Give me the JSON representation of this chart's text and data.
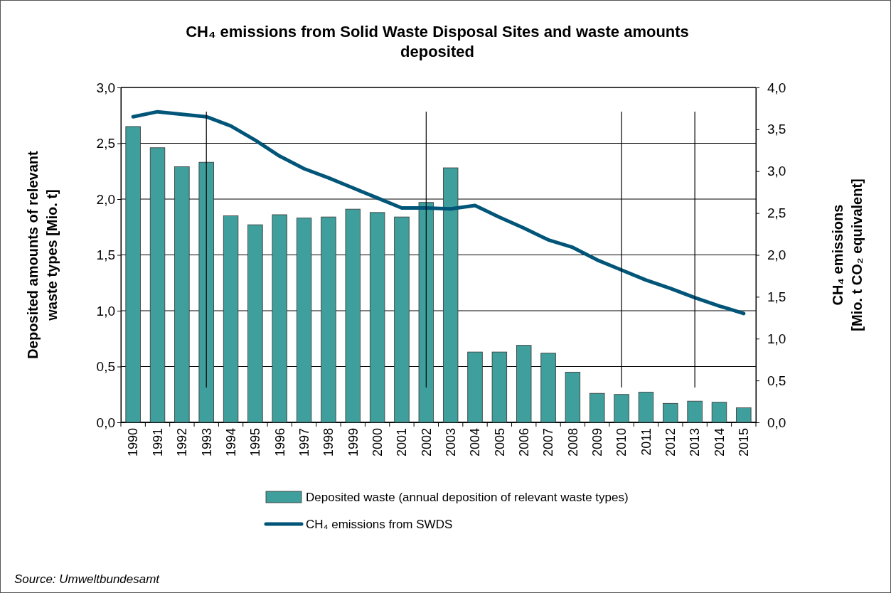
{
  "chart_data": {
    "type": "bar",
    "title": "CH₄ emissions from Solid Waste Disposal Sites and waste amounts deposited",
    "ylabel": "Deposited amounts of relevant waste types [Mio. t]",
    "y2label": "CH₄ emissions [Mio. t CO₂ equivalent]",
    "annotations": [
      "Source: Umweltbundesamt"
    ],
    "categories": [
      "1990",
      "1991",
      "1992",
      "1993",
      "1994",
      "1995",
      "1996",
      "1997",
      "1998",
      "1999",
      "2000",
      "2001",
      "2002",
      "2003",
      "2004",
      "2005",
      "2006",
      "2007",
      "2008",
      "2009",
      "2010",
      "2011",
      "2012",
      "2013",
      "2014",
      "2015"
    ],
    "series": [
      {
        "name": "Deposited waste (annual deposition of relevant waste types)",
        "color": "#3f9f9c",
        "values": [
          2.65,
          2.46,
          2.29,
          2.33,
          1.85,
          1.77,
          1.86,
          1.83,
          1.84,
          1.91,
          1.88,
          1.84,
          1.97,
          2.28,
          0.63,
          0.63,
          0.69,
          0.62,
          0.45,
          0.26,
          0.25,
          0.27,
          0.17,
          0.19,
          0.18,
          0.13
        ]
      },
      {
        "name": "CH₄ emissions from SWDS",
        "type": "line",
        "axis": "y2",
        "color": "#005578",
        "values": [
          3.65,
          3.71,
          3.68,
          3.65,
          3.54,
          3.37,
          3.18,
          3.03,
          2.92,
          2.8,
          2.68,
          2.56,
          2.56,
          2.55,
          2.59,
          2.45,
          2.32,
          2.18,
          2.09,
          1.94,
          1.82,
          1.7,
          1.6,
          1.49,
          1.39,
          1.3
        ]
      }
    ],
    "ylim": [
      0,
      3
    ],
    "yticks": [
      {
        "value": 0,
        "label": "0,0"
      },
      {
        "value": 0.5,
        "label": "0,5"
      },
      {
        "value": 1,
        "label": "1,0"
      },
      {
        "value": 1.5,
        "label": "1,5"
      },
      {
        "value": 2,
        "label": "2,0"
      },
      {
        "value": 2.5,
        "label": "2,5"
      },
      {
        "value": 3,
        "label": "3,0"
      }
    ],
    "y2lim": [
      0,
      4
    ],
    "y2ticks": [
      {
        "value": 0,
        "label": "0,0"
      },
      {
        "value": 0.5,
        "label": "0,5"
      },
      {
        "value": 1,
        "label": "1,0"
      },
      {
        "value": 1.5,
        "label": "1,5"
      },
      {
        "value": 2,
        "label": "2,0"
      },
      {
        "value": 2.5,
        "label": "2,5"
      },
      {
        "value": 3,
        "label": "3,0"
      },
      {
        "value": 3.5,
        "label": "3,5"
      },
      {
        "value": 4,
        "label": "4,0"
      }
    ],
    "ref_lines": [
      {
        "axis": "x",
        "value": "1993",
        "color": "#000000"
      },
      {
        "axis": "x",
        "value": "2002",
        "color": "#000000"
      },
      {
        "axis": "x",
        "value": "2010",
        "color": "#000000"
      },
      {
        "axis": "x",
        "value": "2013",
        "color": "#000000"
      }
    ],
    "grid": "y",
    "legend": "bottom",
    "line_style": "solid",
    "marker": "none"
  }
}
